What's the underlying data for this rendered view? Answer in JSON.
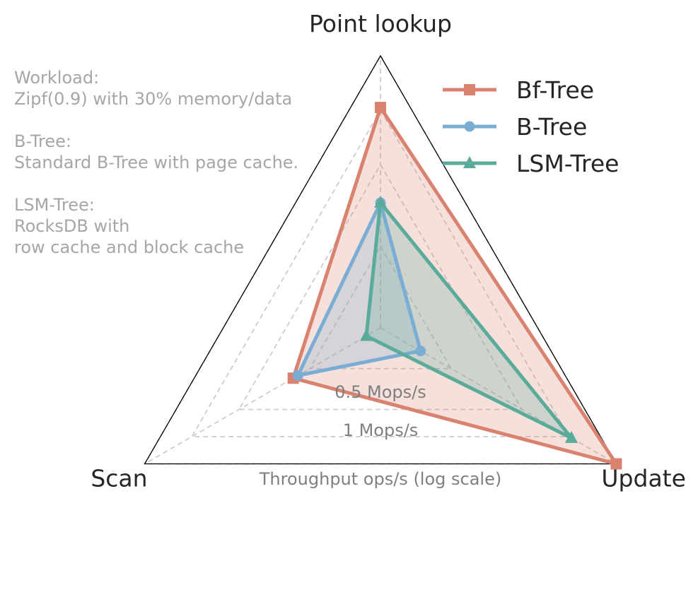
{
  "notes": [
    {
      "heading": "Workload:",
      "lines": [
        "Zipf(0.9) with 30% memory/data"
      ]
    },
    {
      "heading": "B-Tree:",
      "lines": [
        "Standard B-Tree with page cache."
      ]
    },
    {
      "heading": "LSM-Tree:",
      "lines": [
        "RocksDB with",
        "row cache and block cache"
      ]
    }
  ],
  "chart_data": {
    "type": "radar",
    "axes": [
      "Point lookup",
      "Update",
      "Scan"
    ],
    "scale": "log",
    "xlabel": "Throughput ops/s (log scale)",
    "ring_labels": [
      "0.5 Mops/s",
      "1 Mops/s"
    ],
    "rings": [
      0.3,
      0.6,
      0.8,
      1.0
    ],
    "series": [
      {
        "name": "Bf-Tree",
        "color": "#d9826f",
        "marker": "square",
        "values": [
          0.81,
          1.0,
          0.37
        ]
      },
      {
        "name": "B-Tree",
        "color": "#7aadd3",
        "marker": "circle",
        "values": [
          0.46,
          0.17,
          0.35
        ]
      },
      {
        "name": "LSM-Tree",
        "color": "#5aab9a",
        "marker": "triangle",
        "values": [
          0.46,
          0.81,
          0.06
        ]
      }
    ],
    "legend_position": "top-right",
    "grid": true
  }
}
